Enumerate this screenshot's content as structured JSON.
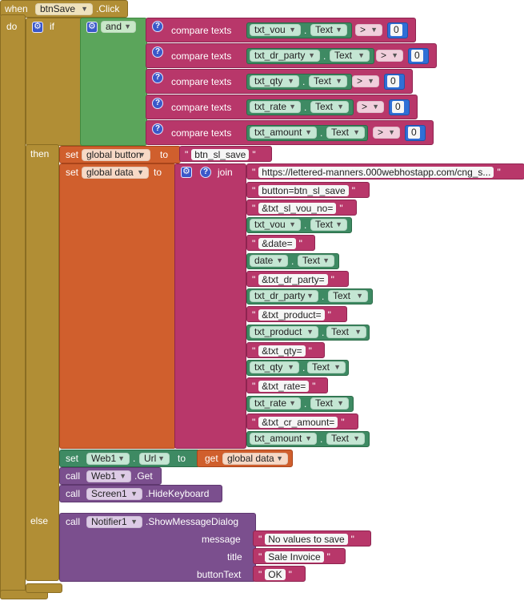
{
  "event": {
    "when": "when",
    "component": "btnSave",
    "event": ".Click",
    "do": "do"
  },
  "if_block": {
    "if": "if",
    "and": "and"
  },
  "compares": [
    {
      "label": "compare texts",
      "component": "txt_vou",
      "prop": "Text",
      "op": ">",
      "value": "0"
    },
    {
      "label": "compare texts",
      "component": "txt_dr_party",
      "prop": "Text",
      "op": ">",
      "value": "0"
    },
    {
      "label": "compare texts",
      "component": "txt_qty",
      "prop": "Text",
      "op": ">",
      "value": "0"
    },
    {
      "label": "compare texts",
      "component": "txt_rate",
      "prop": "Text",
      "op": ">",
      "value": "0"
    },
    {
      "label": "compare texts",
      "component": "txt_amount",
      "prop": "Text",
      "op": ">",
      "value": "0"
    }
  ],
  "then": "then",
  "else": "else",
  "set_button": {
    "set": "set",
    "var": "global button",
    "to": "to",
    "value": "btn_sl_save"
  },
  "set_data": {
    "set": "set",
    "var": "global data",
    "to": "to",
    "join": "join"
  },
  "join_items": [
    {
      "kind": "str",
      "text": "https://lettered-manners.000webhostapp.com/cng_s..."
    },
    {
      "kind": "str",
      "text": "button=btn_sl_save"
    },
    {
      "kind": "str",
      "text": "&txt_sl_vou_no="
    },
    {
      "kind": "prop",
      "component": "txt_vou",
      "prop": "Text"
    },
    {
      "kind": "str",
      "text": "&date="
    },
    {
      "kind": "prop",
      "component": "date",
      "prop": "Text"
    },
    {
      "kind": "str",
      "text": "&txt_dr_party="
    },
    {
      "kind": "prop",
      "component": "txt_dr_party",
      "prop": "Text"
    },
    {
      "kind": "str",
      "text": "&txt_product="
    },
    {
      "kind": "prop",
      "component": "txt_product",
      "prop": "Text"
    },
    {
      "kind": "str",
      "text": "&txt_qty="
    },
    {
      "kind": "prop",
      "component": "txt_qty",
      "prop": "Text"
    },
    {
      "kind": "str",
      "text": "&txt_rate="
    },
    {
      "kind": "prop",
      "component": "txt_rate",
      "prop": "Text"
    },
    {
      "kind": "str",
      "text": "&txt_cr_amount="
    },
    {
      "kind": "prop",
      "component": "txt_amount",
      "prop": "Text"
    }
  ],
  "set_url": {
    "set": "set",
    "component": "Web1",
    "prop": "Url",
    "to": "to",
    "get": "get",
    "var": "global data"
  },
  "call_get": {
    "call": "call",
    "component": "Web1",
    "method": ".Get"
  },
  "call_hide": {
    "call": "call",
    "component": "Screen1",
    "method": ".HideKeyboard"
  },
  "call_notify": {
    "call": "call",
    "component": "Notifier1",
    "method": ".ShowMessageDialog",
    "message_label": "message",
    "message": "No values to save",
    "title_label": "title",
    "title": "Sale Invoice",
    "button_label": "buttonText",
    "button": "OK"
  }
}
